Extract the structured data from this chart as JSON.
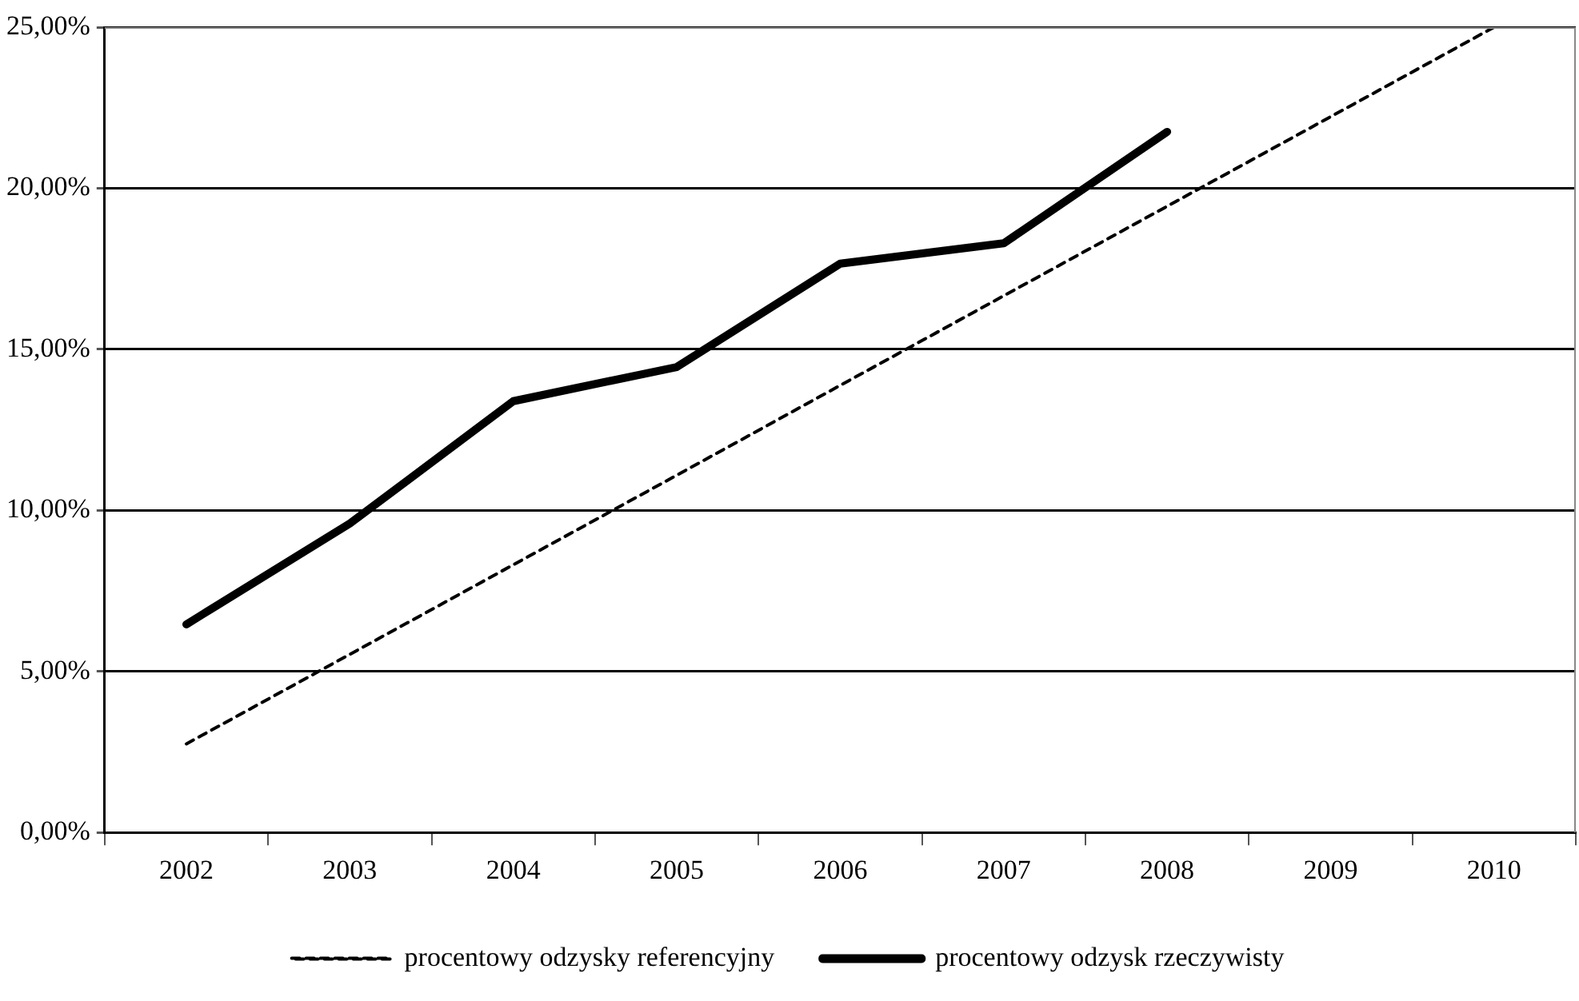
{
  "chart_data": {
    "type": "line",
    "categories": [
      "2002",
      "2003",
      "2004",
      "2005",
      "2006",
      "2007",
      "2008",
      "2009",
      "2010"
    ],
    "series": [
      {
        "name": "procentowy odzysky referencyjny",
        "color": "#000000",
        "line_style": "dashed",
        "values": [
          2.75,
          5.53,
          8.31,
          11.09,
          13.88,
          16.66,
          19.44,
          22.22,
          25.0
        ]
      },
      {
        "name": "procentowy odzysk rzeczywisty",
        "color": "#000000",
        "line_style": "solid",
        "values": [
          6.46,
          9.59,
          13.39,
          14.45,
          17.66,
          18.29,
          21.75,
          null,
          null
        ]
      }
    ],
    "ylim": [
      0,
      25
    ],
    "yticks": [
      {
        "value": 0,
        "label": "0,00%"
      },
      {
        "value": 5,
        "label": "5,00%"
      },
      {
        "value": 10,
        "label": "10,00%"
      },
      {
        "value": 15,
        "label": "15,00%"
      },
      {
        "value": 20,
        "label": "20,00%"
      },
      {
        "value": 25,
        "label": "25,00%"
      }
    ],
    "grid": "y",
    "legend": "bottom",
    "marker": "none"
  }
}
